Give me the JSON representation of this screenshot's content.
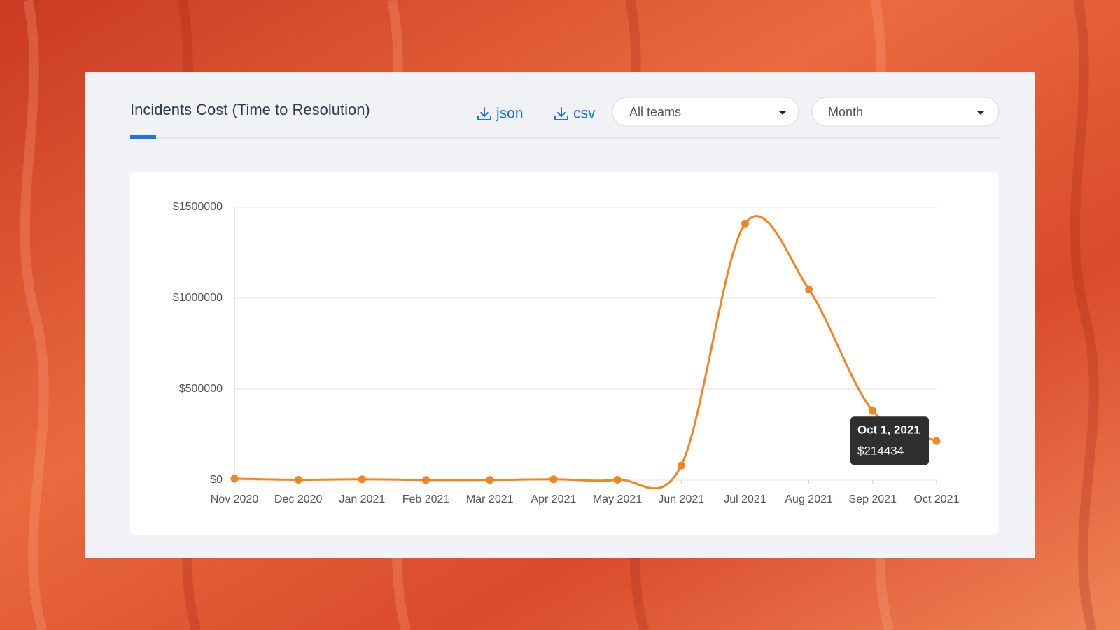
{
  "header": {
    "title": "Incidents Cost (Time to Resolution)",
    "actions": [
      "json",
      "csv"
    ],
    "filters": [
      "All teams",
      "Month"
    ]
  },
  "chart_data": {
    "type": "line",
    "categories": [
      "Nov 2020",
      "Dec 2020",
      "Jan 2021",
      "Feb 2021",
      "Mar 2021",
      "Apr 2021",
      "May 2021",
      "Jun 2021",
      "Jul 2021",
      "Aug 2021",
      "Sep 2021",
      "Oct 2021"
    ],
    "values": [
      8000,
      2000,
      5000,
      1000,
      1000,
      5000,
      2000,
      80000,
      1410000,
      1048000,
      381000,
      214434
    ],
    "color": "#f5841f",
    "ylim": [
      0,
      1500000
    ],
    "yticks": [
      {
        "value": 0,
        "label": "$0"
      },
      {
        "value": 500000,
        "label": "$500000"
      },
      {
        "value": 1000000,
        "label": "$1000000"
      },
      {
        "value": 1500000,
        "label": "$1500000"
      }
    ],
    "grid": true
  },
  "tooltip": {
    "title": "Oct 1, 2021",
    "label": "$214434"
  }
}
